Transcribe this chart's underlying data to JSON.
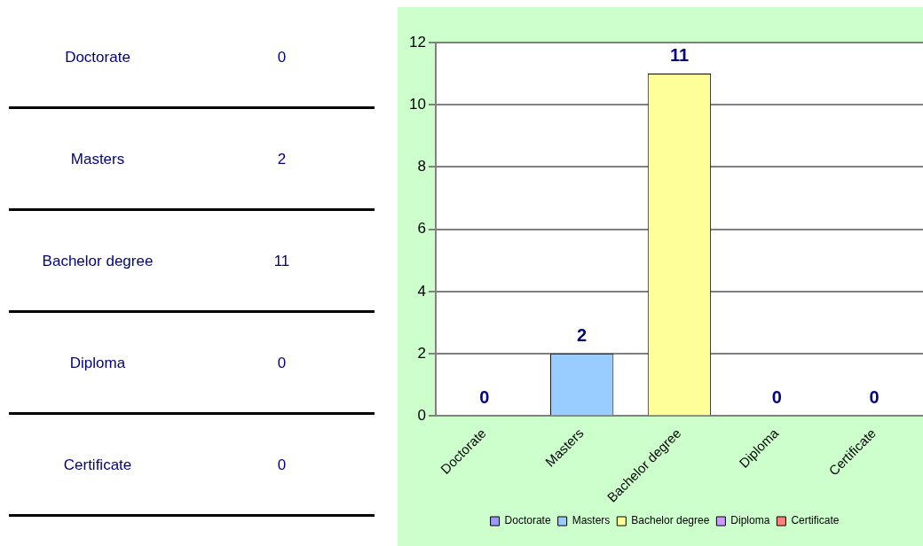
{
  "chart_data": [
    {
      "type": "other",
      "categories": [
        "Doctorate",
        "Masters",
        "Bachelor degree",
        "Diploma",
        "Certificate"
      ],
      "values": [
        0,
        2,
        11,
        0,
        0
      ],
      "data_labels": true
    },
    {
      "type": "bar",
      "categories": [
        "Doctorate",
        "Masters",
        "Bachelor degree",
        "Diploma",
        "Certificate"
      ],
      "series": [
        {
          "name": "Doctorate",
          "color": "#9999ff",
          "values": [
            0,
            null,
            null,
            null,
            null
          ]
        },
        {
          "name": "Masters",
          "color": "#99ccff",
          "values": [
            null,
            2,
            null,
            null,
            null
          ]
        },
        {
          "name": "Bachelor degree",
          "color": "#ffff99",
          "values": [
            null,
            null,
            11,
            null,
            null
          ]
        },
        {
          "name": "Diploma",
          "color": "#cc99ff",
          "values": [
            null,
            null,
            null,
            0,
            null
          ]
        },
        {
          "name": "Certificate",
          "color": "#ff8080",
          "values": [
            null,
            null,
            null,
            null,
            0
          ]
        }
      ],
      "ylim": [
        0,
        12
      ],
      "yticks": [
        0,
        2,
        4,
        6,
        8,
        10,
        12
      ],
      "grid": "y",
      "legend": "bottom",
      "data_labels": true
    }
  ]
}
